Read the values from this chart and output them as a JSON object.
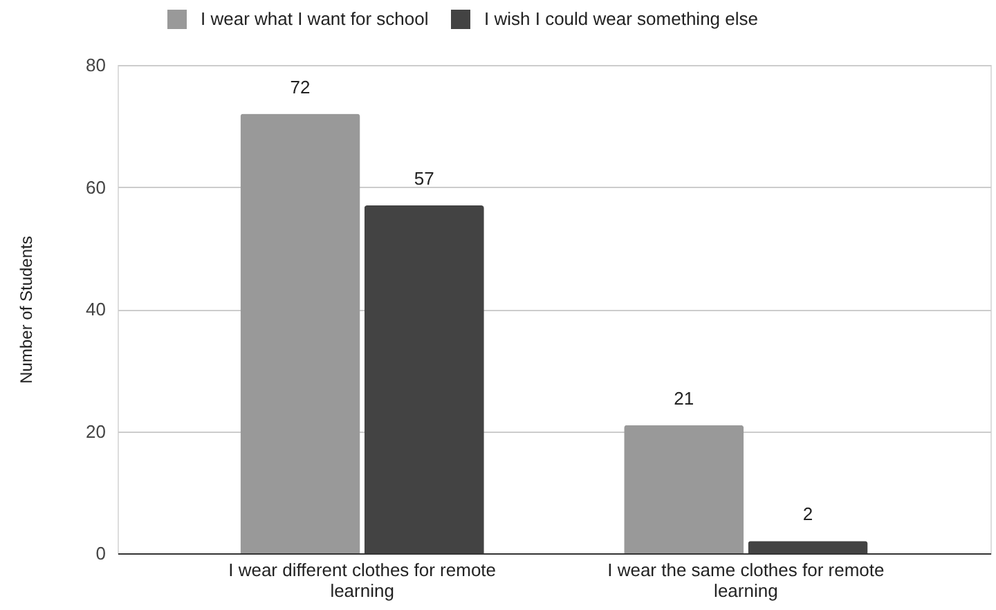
{
  "chart_data": {
    "type": "bar",
    "ylabel": "Number of Students",
    "categories": [
      "I wear different clothes for remote learning",
      "I wear the same clothes for remote learning"
    ],
    "series": [
      {
        "name": "I wear what I want for school",
        "color": "#999999",
        "values": [
          72,
          21
        ]
      },
      {
        "name": "I wish I could wear something else",
        "color": "#434343",
        "values": [
          57,
          2
        ]
      }
    ],
    "ylim": [
      0,
      80
    ],
    "yticks": [
      0,
      20,
      40,
      60,
      80
    ],
    "grid": "y",
    "legend": "top",
    "data_labels": true
  }
}
